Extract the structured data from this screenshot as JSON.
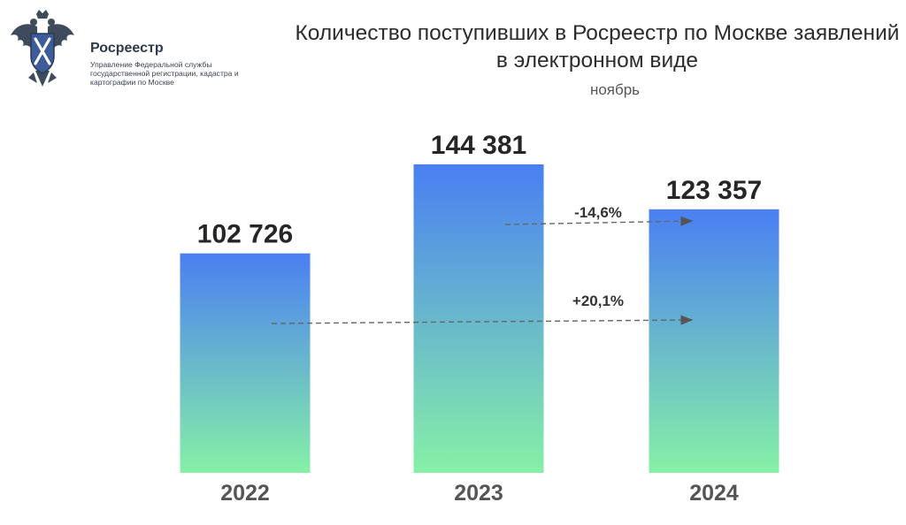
{
  "header": {
    "org_name": "Росреестр",
    "org_subtitle": "Управление Федеральной службы государственной регистрации, кадастра и картографии по Москве",
    "logo_icon": "coat-of-arms-eagle-icon"
  },
  "chart_data": {
    "type": "bar",
    "title": "Количество поступивших в Росреестр по Москве заявлений в электронном виде",
    "subtitle": "ноябрь",
    "categories": [
      "2022",
      "2023",
      "2024"
    ],
    "values": [
      102726,
      144381,
      123357
    ],
    "value_labels": [
      "102 726",
      "144 381",
      "123 357"
    ],
    "ylim": [
      0,
      150000
    ],
    "grid": false,
    "bar_gradient": {
      "top": "#4a7ff2",
      "bottom": "#86f0a6"
    },
    "annotations": [
      {
        "from": "2023",
        "to": "2024",
        "label": "-14,6%"
      },
      {
        "from": "2022",
        "to": "2024",
        "label": "+20,1%"
      }
    ]
  }
}
